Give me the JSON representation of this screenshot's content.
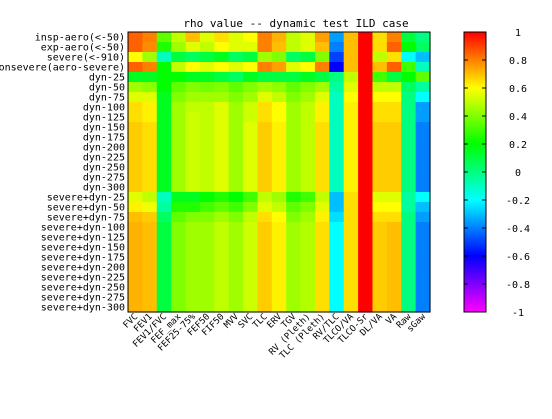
{
  "chart_data": {
    "type": "heatmap",
    "title": "rho value -- dynamic test ILD case",
    "x_categories": [
      "FVC",
      "FEV1",
      "FEV1/FVC",
      "FEF_max",
      "FEF25-75%",
      "FEF50",
      "FIF50",
      "MVV",
      "SVC",
      "TLC",
      "ERV",
      "TGV",
      "RV (Pleth)",
      "TLC (Pleth)",
      "RV/TLC",
      "TLCO/VA",
      "TLCO-Sr",
      "DL/VA",
      "VA",
      "Raw",
      "sGaw"
    ],
    "y_categories": [
      "insp-aero(<-50)",
      "exp-aero(<-50)",
      "severe(<-910)",
      "nonsevere(aero-severe)",
      "dyn-25",
      "dyn-50",
      "dyn-75",
      "dyn-100",
      "dyn-125",
      "dyn-150",
      "dyn-175",
      "dyn-200",
      "dyn-225",
      "dyn-250",
      "dyn-275",
      "dyn-300",
      "severe+dyn-25",
      "severe+dyn-50",
      "severe+dyn-75",
      "severe+dyn-100",
      "severe+dyn-125",
      "severe+dyn-150",
      "severe+dyn-175",
      "severe+dyn-200",
      "severe+dyn-225",
      "severe+dyn-250",
      "severe+dyn-275",
      "severe+dyn-300"
    ],
    "values": [
      [
        0.85,
        0.8,
        0.35,
        0.5,
        0.7,
        0.55,
        0.65,
        0.55,
        0.6,
        0.8,
        0.72,
        0.5,
        0.55,
        0.75,
        -0.35,
        0.7,
        1.0,
        0.65,
        0.8,
        0.1,
        0.0
      ],
      [
        0.85,
        0.78,
        0.25,
        0.45,
        0.55,
        0.5,
        0.6,
        0.55,
        0.55,
        0.8,
        0.7,
        0.5,
        0.55,
        0.7,
        -0.4,
        0.7,
        1.0,
        0.65,
        0.85,
        0.2,
        0.05
      ],
      [
        0.6,
        0.45,
        -0.1,
        0.1,
        0.05,
        0.1,
        0.15,
        0.05,
        0.1,
        0.45,
        0.4,
        0.05,
        0.1,
        0.4,
        -0.5,
        0.7,
        1.0,
        0.5,
        0.65,
        -0.2,
        -0.3
      ],
      [
        0.85,
        0.8,
        0.2,
        0.5,
        0.6,
        0.55,
        0.6,
        0.55,
        0.6,
        0.8,
        0.75,
        0.55,
        0.6,
        0.8,
        -0.6,
        0.7,
        1.0,
        0.7,
        0.85,
        0.3,
        -0.1
      ],
      [
        0.15,
        0.15,
        0.2,
        0.2,
        0.15,
        0.15,
        0.1,
        0.05,
        0.15,
        0.1,
        0.1,
        0.1,
        0.15,
        0.1,
        0.0,
        0.5,
        1.0,
        0.3,
        0.1,
        0.2,
        0.35
      ],
      [
        0.45,
        0.42,
        0.2,
        0.35,
        0.4,
        0.38,
        0.4,
        0.35,
        0.4,
        0.45,
        0.42,
        0.35,
        0.4,
        0.45,
        -0.05,
        0.55,
        1.0,
        0.5,
        0.5,
        0.05,
        -0.05
      ],
      [
        0.55,
        0.55,
        0.15,
        0.4,
        0.45,
        0.45,
        0.45,
        0.4,
        0.45,
        0.55,
        0.5,
        0.4,
        0.45,
        0.55,
        -0.1,
        0.6,
        1.0,
        0.6,
        0.6,
        0.0,
        -0.2
      ],
      [
        0.65,
        0.62,
        0.15,
        0.45,
        0.5,
        0.5,
        0.55,
        0.45,
        0.52,
        0.65,
        0.6,
        0.45,
        0.5,
        0.62,
        -0.1,
        0.62,
        1.0,
        0.65,
        0.65,
        0.0,
        -0.35
      ],
      [
        0.65,
        0.62,
        0.15,
        0.45,
        0.52,
        0.5,
        0.55,
        0.45,
        0.52,
        0.65,
        0.6,
        0.45,
        0.5,
        0.62,
        -0.1,
        0.62,
        1.0,
        0.65,
        0.65,
        0.0,
        -0.35
      ],
      [
        0.68,
        0.65,
        0.15,
        0.45,
        0.52,
        0.5,
        0.55,
        0.45,
        0.55,
        0.68,
        0.62,
        0.45,
        0.5,
        0.65,
        -0.1,
        0.62,
        1.0,
        0.68,
        0.68,
        0.0,
        -0.4
      ],
      [
        0.68,
        0.65,
        0.15,
        0.45,
        0.52,
        0.5,
        0.55,
        0.45,
        0.55,
        0.68,
        0.62,
        0.45,
        0.5,
        0.65,
        -0.1,
        0.62,
        1.0,
        0.68,
        0.68,
        0.0,
        -0.4
      ],
      [
        0.68,
        0.65,
        0.15,
        0.45,
        0.52,
        0.5,
        0.55,
        0.45,
        0.55,
        0.68,
        0.62,
        0.45,
        0.5,
        0.65,
        -0.1,
        0.62,
        1.0,
        0.68,
        0.68,
        0.0,
        -0.4
      ],
      [
        0.68,
        0.65,
        0.15,
        0.45,
        0.52,
        0.5,
        0.55,
        0.45,
        0.55,
        0.68,
        0.62,
        0.45,
        0.5,
        0.65,
        -0.1,
        0.62,
        1.0,
        0.68,
        0.68,
        0.0,
        -0.4
      ],
      [
        0.68,
        0.65,
        0.15,
        0.45,
        0.52,
        0.5,
        0.55,
        0.45,
        0.55,
        0.68,
        0.62,
        0.45,
        0.5,
        0.65,
        -0.1,
        0.62,
        1.0,
        0.68,
        0.68,
        0.0,
        -0.4
      ],
      [
        0.68,
        0.65,
        0.15,
        0.45,
        0.52,
        0.5,
        0.55,
        0.45,
        0.55,
        0.68,
        0.62,
        0.45,
        0.5,
        0.65,
        -0.1,
        0.62,
        1.0,
        0.68,
        0.68,
        0.0,
        -0.4
      ],
      [
        0.68,
        0.65,
        0.15,
        0.45,
        0.52,
        0.5,
        0.55,
        0.45,
        0.55,
        0.68,
        0.62,
        0.45,
        0.5,
        0.65,
        -0.1,
        0.62,
        1.0,
        0.68,
        0.68,
        0.0,
        -0.4
      ],
      [
        0.55,
        0.5,
        -0.1,
        0.15,
        0.15,
        0.2,
        0.25,
        0.2,
        0.3,
        0.5,
        0.45,
        0.25,
        0.3,
        0.5,
        -0.3,
        0.65,
        1.0,
        0.55,
        0.55,
        -0.05,
        -0.2
      ],
      [
        0.62,
        0.58,
        -0.05,
        0.25,
        0.25,
        0.3,
        0.35,
        0.3,
        0.4,
        0.55,
        0.5,
        0.35,
        0.4,
        0.55,
        -0.3,
        0.65,
        1.0,
        0.6,
        0.6,
        -0.05,
        -0.3
      ],
      [
        0.7,
        0.68,
        0.05,
        0.35,
        0.4,
        0.4,
        0.45,
        0.4,
        0.5,
        0.65,
        0.6,
        0.4,
        0.45,
        0.62,
        -0.25,
        0.65,
        1.0,
        0.65,
        0.65,
        0.0,
        -0.35
      ],
      [
        0.72,
        0.7,
        0.1,
        0.4,
        0.45,
        0.45,
        0.5,
        0.45,
        0.52,
        0.68,
        0.62,
        0.45,
        0.48,
        0.65,
        -0.2,
        0.65,
        1.0,
        0.68,
        0.7,
        0.0,
        -0.4
      ],
      [
        0.72,
        0.7,
        0.1,
        0.4,
        0.45,
        0.45,
        0.5,
        0.45,
        0.52,
        0.68,
        0.62,
        0.45,
        0.48,
        0.65,
        -0.2,
        0.65,
        1.0,
        0.68,
        0.7,
        0.0,
        -0.4
      ],
      [
        0.72,
        0.7,
        0.1,
        0.4,
        0.45,
        0.45,
        0.5,
        0.45,
        0.52,
        0.68,
        0.62,
        0.45,
        0.48,
        0.65,
        -0.2,
        0.65,
        1.0,
        0.68,
        0.7,
        0.0,
        -0.4
      ],
      [
        0.72,
        0.7,
        0.1,
        0.4,
        0.45,
        0.45,
        0.5,
        0.45,
        0.52,
        0.68,
        0.62,
        0.45,
        0.48,
        0.65,
        -0.2,
        0.65,
        1.0,
        0.68,
        0.7,
        0.0,
        -0.4
      ],
      [
        0.72,
        0.7,
        0.1,
        0.4,
        0.45,
        0.45,
        0.5,
        0.45,
        0.52,
        0.68,
        0.62,
        0.45,
        0.48,
        0.65,
        -0.2,
        0.65,
        1.0,
        0.68,
        0.7,
        0.0,
        -0.4
      ],
      [
        0.72,
        0.7,
        0.1,
        0.4,
        0.45,
        0.45,
        0.5,
        0.45,
        0.52,
        0.68,
        0.62,
        0.45,
        0.48,
        0.65,
        -0.2,
        0.65,
        1.0,
        0.68,
        0.7,
        0.0,
        -0.4
      ],
      [
        0.72,
        0.7,
        0.1,
        0.4,
        0.45,
        0.45,
        0.5,
        0.45,
        0.52,
        0.68,
        0.62,
        0.45,
        0.48,
        0.65,
        -0.2,
        0.65,
        1.0,
        0.68,
        0.7,
        0.0,
        -0.4
      ],
      [
        0.72,
        0.7,
        0.1,
        0.4,
        0.45,
        0.45,
        0.5,
        0.45,
        0.52,
        0.68,
        0.62,
        0.45,
        0.48,
        0.65,
        -0.2,
        0.65,
        1.0,
        0.68,
        0.7,
        0.0,
        -0.4
      ],
      [
        0.72,
        0.7,
        0.1,
        0.4,
        0.45,
        0.45,
        0.5,
        0.45,
        0.52,
        0.68,
        0.62,
        0.45,
        0.48,
        0.65,
        -0.2,
        0.65,
        1.0,
        0.68,
        0.7,
        0.0,
        -0.4
      ]
    ],
    "colorbar": {
      "range": [
        -1,
        1
      ],
      "ticks": [
        "1",
        "0.8",
        "0.6",
        "0.4",
        "0.2",
        "0",
        "-0.2",
        "-0.4",
        "-0.6",
        "-0.8",
        "-1"
      ],
      "palette": [
        "#ff00ff",
        "#0000ff",
        "#00ffff",
        "#00ff00",
        "#ffff00",
        "#ff0000"
      ]
    },
    "xlabel": "",
    "ylabel": "",
    "grid": false
  }
}
